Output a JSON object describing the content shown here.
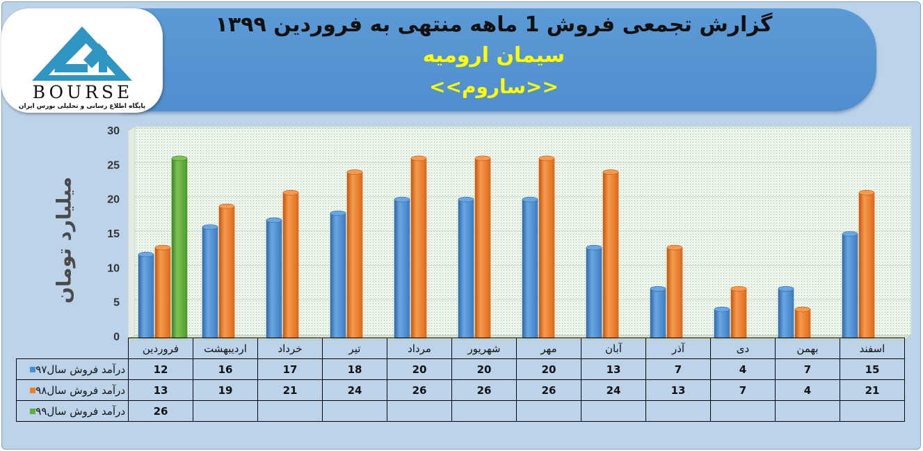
{
  "header": {
    "title": "گزارش تجمعی فروش 1 ماهه منتهی به فروردین ۱۳۹۹",
    "company": "سیمان ارومیه",
    "symbol": "<<ساروم>>"
  },
  "logo": {
    "word": "BOURSE",
    "tagline": "پایگاه اطلاع رسانی و تحلیلی بورس ایران",
    "icon": "24-bourse-logo-icon"
  },
  "chart_data": {
    "type": "bar",
    "ylabel": "میلیارد تومان",
    "ylim": [
      0,
      30
    ],
    "yticks": [
      "0",
      "5",
      "10",
      "15",
      "20",
      "25",
      "30"
    ],
    "categories": [
      "فروردین",
      "اردیبهشت",
      "خرداد",
      "تیر",
      "مرداد",
      "شهریور",
      "مهر",
      "آبان",
      "آذر",
      "دی",
      "بهمن",
      "اسفند"
    ],
    "series": [
      {
        "name": "درآمد فروش سال۹۷",
        "color": "#4a8fd4",
        "values": [
          12,
          16,
          17,
          18,
          20,
          20,
          20,
          13,
          7,
          4,
          7,
          15
        ]
      },
      {
        "name": "درآمد فروش سال۹۸",
        "color": "#f07c26",
        "values": [
          13,
          19,
          21,
          24,
          26,
          26,
          26,
          24,
          13,
          7,
          4,
          21
        ]
      },
      {
        "name": "درآمد فروش سال۹۹",
        "color": "#5fac3c",
        "values": [
          26,
          null,
          null,
          null,
          null,
          null,
          null,
          null,
          null,
          null,
          null,
          null
        ]
      }
    ],
    "grid": false,
    "legend": "data-table"
  },
  "colors": {
    "banner": "#5c9ad6",
    "background": "#bcd3ea",
    "plot_area": "#eaf3ea",
    "highlight": "#ffff00"
  }
}
